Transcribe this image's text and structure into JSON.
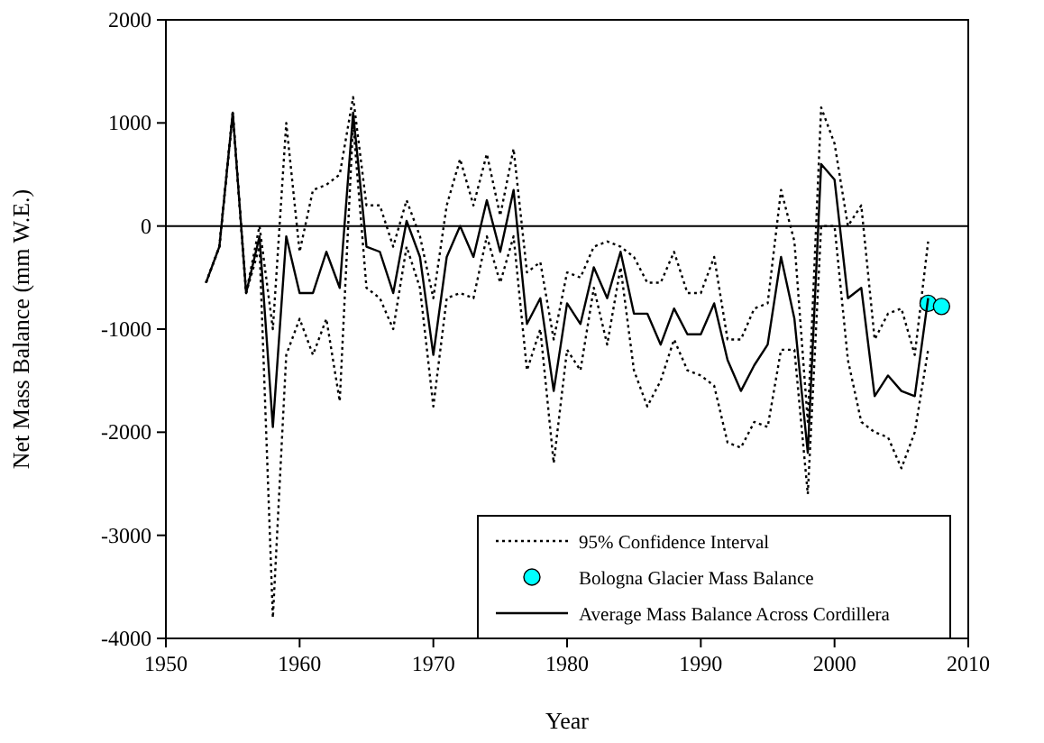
{
  "chart_data": {
    "type": "line",
    "xlabel": "Year",
    "ylabel": "Net Mass Balance (mm W.E.)",
    "xlim": [
      1950,
      2010
    ],
    "ylim": [
      -4000,
      2000
    ],
    "xticks": [
      1950,
      1960,
      1970,
      1980,
      1990,
      2000,
      2010
    ],
    "yticks": [
      -4000,
      -3000,
      -2000,
      -1000,
      0,
      1000,
      2000
    ],
    "legend": "bottom right",
    "grid": false,
    "ref_lines": [
      {
        "axis": "y",
        "value": 0,
        "color": "#000000"
      }
    ],
    "series": [
      {
        "name": "95% Confidence Interval",
        "line_style": "dotted",
        "color": "#000000",
        "x": [
          1953,
          1954,
          1955,
          1956,
          1957,
          1958,
          1959,
          1960,
          1961,
          1962,
          1963,
          1964,
          1965,
          1966,
          1967,
          1968,
          1969,
          1970,
          1971,
          1972,
          1973,
          1974,
          1975,
          1976,
          1977,
          1978,
          1979,
          1980,
          1981,
          1982,
          1983,
          1984,
          1985,
          1986,
          1987,
          1988,
          1989,
          1990,
          1991,
          1992,
          1993,
          1994,
          1995,
          1996,
          1997,
          1998,
          1999,
          2000,
          2001,
          2002,
          2003,
          2004,
          2005,
          2006,
          2007
        ],
        "values": [
          -550,
          -200,
          1100,
          -650,
          0,
          -1000,
          1000,
          -250,
          350,
          400,
          500,
          1250,
          200,
          200,
          -200,
          250,
          -100,
          -700,
          200,
          650,
          200,
          700,
          100,
          750,
          -450,
          -350,
          -1100,
          -450,
          -500,
          -200,
          -150,
          -200,
          -300,
          -550,
          -550,
          -250,
          -650,
          -650,
          -300,
          -1100,
          -1100,
          -800,
          -750,
          350,
          -150,
          -1900,
          1150,
          800,
          0,
          200,
          -1100,
          -850,
          -800,
          -1250,
          -150
        ]
      },
      {
        "line_style": "dotted",
        "color": "#000000",
        "x": [
          1953,
          1954,
          1955,
          1956,
          1957,
          1958,
          1959,
          1960,
          1961,
          1962,
          1963,
          1964,
          1965,
          1966,
          1967,
          1968,
          1969,
          1970,
          1971,
          1972,
          1973,
          1974,
          1975,
          1976,
          1977,
          1978,
          1979,
          1980,
          1981,
          1982,
          1983,
          1984,
          1985,
          1986,
          1987,
          1988,
          1989,
          1990,
          1991,
          1992,
          1993,
          1994,
          1995,
          1996,
          1997,
          1998,
          1999,
          2000,
          2001,
          2002,
          2003,
          2004,
          2005,
          2006,
          2007
        ],
        "values": [
          -550,
          -200,
          1100,
          -650,
          -200,
          -3800,
          -1250,
          -900,
          -1250,
          -900,
          -1700,
          1000,
          -600,
          -700,
          -1000,
          -200,
          -600,
          -1750,
          -700,
          -650,
          -700,
          -100,
          -550,
          -100,
          -1400,
          -1000,
          -2300,
          -1200,
          -1400,
          -600,
          -1150,
          -400,
          -1400,
          -1750,
          -1500,
          -1100,
          -1400,
          -1450,
          -1550,
          -2100,
          -2150,
          -1900,
          -1950,
          -1200,
          -1200,
          -2600,
          0,
          0,
          -1300,
          -1900,
          -2000,
          -2050,
          -2350,
          -2000,
          -1200
        ]
      },
      {
        "name": "Bologna Glacier Mass Balance",
        "type": "scatter",
        "marker": "circle",
        "color": "#00ffff",
        "x": [
          2007,
          2008
        ],
        "values": [
          -750,
          -780
        ]
      },
      {
        "name": "Average Mass Balance Across Cordillera",
        "line_style": "solid",
        "color": "#000000",
        "x": [
          1953,
          1954,
          1955,
          1956,
          1957,
          1958,
          1959,
          1960,
          1961,
          1962,
          1963,
          1964,
          1965,
          1966,
          1967,
          1968,
          1969,
          1970,
          1971,
          1972,
          1973,
          1974,
          1975,
          1976,
          1977,
          1978,
          1979,
          1980,
          1981,
          1982,
          1983,
          1984,
          1985,
          1986,
          1987,
          1988,
          1989,
          1990,
          1991,
          1992,
          1993,
          1994,
          1995,
          1996,
          1997,
          1998,
          1999,
          2000,
          2001,
          2002,
          2003,
          2004,
          2005,
          2006,
          2007
        ],
        "values": [
          -550,
          -200,
          1100,
          -650,
          -100,
          -1950,
          -100,
          -650,
          -650,
          -250,
          -600,
          1100,
          -200,
          -250,
          -650,
          50,
          -300,
          -1250,
          -300,
          0,
          -300,
          250,
          -250,
          350,
          -950,
          -700,
          -1600,
          -750,
          -950,
          -400,
          -700,
          -250,
          -850,
          -850,
          -1150,
          -800,
          -1050,
          -1050,
          -750,
          -1300,
          -1600,
          -1350,
          -1150,
          -300,
          -900,
          -2200,
          600,
          450,
          -700,
          -600,
          -1650,
          -1450,
          -1600,
          -1650,
          -700
        ]
      }
    ]
  }
}
